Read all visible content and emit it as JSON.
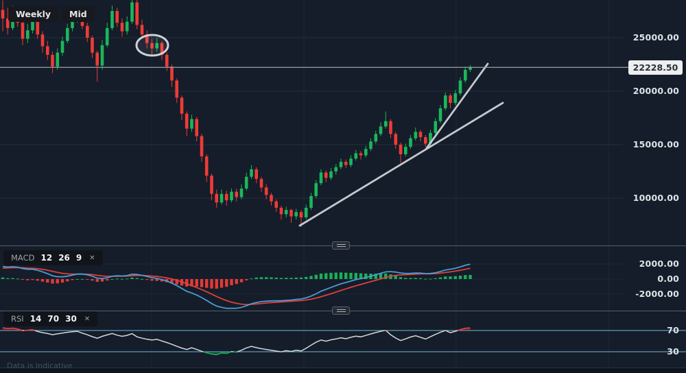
{
  "app": {
    "timeframe_button": "Weekly",
    "chart_type_button": "Mid",
    "disclaimer": "Data is indicative"
  },
  "price_axis": {
    "current_price": "22228.50",
    "labels": [
      {
        "text": "25000.00",
        "value": 25000
      },
      {
        "text": "20000.00",
        "value": 20000
      },
      {
        "text": "15000.00",
        "value": 15000
      },
      {
        "text": "10000.00",
        "value": 10000
      }
    ]
  },
  "macd_axis": {
    "labels": [
      {
        "text": "2000.00",
        "value": 2000
      },
      {
        "text": "0.00",
        "value": 0
      },
      {
        "text": "-2000.00",
        "value": -2000
      }
    ]
  },
  "rsi_axis": {
    "labels": [
      {
        "text": "70",
        "value": 70
      },
      {
        "text": "30",
        "value": 30
      }
    ]
  },
  "indicators": {
    "macd": {
      "name": "MACD",
      "params": [
        12,
        26,
        9
      ],
      "close_label": "✕"
    },
    "rsi": {
      "name": "RSI",
      "params": [
        14,
        70,
        30
      ],
      "close_label": "✕"
    }
  },
  "colors": {
    "background": "#141d29",
    "grid": "#1e2836",
    "grid_bright": "#243040",
    "up": "#1bb75b",
    "down": "#ef3b37",
    "macd_line": "#4a9bd5",
    "macd_signal": "#e0403a",
    "hist_up": "#1bb75b",
    "hist_down": "#ef3b37",
    "rsi_line": "#d5d8db",
    "rsi_level": "#6fb1d8",
    "overbought": "#e0393c",
    "oversold": "#1aa457",
    "annotation": "#ccd2d7",
    "price_line": "#98a1aa",
    "divider": "#8b97a6"
  },
  "chart_data": {
    "type": "candlestick",
    "timeframe": "Weekly",
    "last_price": 22228.5,
    "y_ticks": [
      25000,
      20000,
      15000,
      10000
    ],
    "visible_price_range": [
      6800,
      28500
    ],
    "macd_ticks": [
      2000,
      0,
      -2000
    ],
    "rsi_levels": [
      70,
      30
    ],
    "indicator_settings": {
      "macd": {
        "fast": 12,
        "slow": 26,
        "signal": 9
      },
      "rsi": {
        "period": 14,
        "overbought": 70,
        "oversold": 30
      }
    },
    "candles": [
      [
        27600,
        28500,
        25600,
        26800
      ],
      [
        26800,
        27800,
        25300,
        25900
      ],
      [
        25900,
        28000,
        25700,
        27400
      ],
      [
        27400,
        27900,
        26000,
        26400
      ],
      [
        26400,
        26700,
        24300,
        24900
      ],
      [
        24900,
        26300,
        24500,
        25700
      ],
      [
        25700,
        27600,
        25400,
        26900
      ],
      [
        26900,
        27100,
        24900,
        25300
      ],
      [
        25300,
        25600,
        23600,
        24200
      ],
      [
        24200,
        24700,
        22900,
        23400
      ],
      [
        23400,
        23700,
        21700,
        22300
      ],
      [
        22300,
        24000,
        22000,
        23600
      ],
      [
        23600,
        25100,
        23300,
        24700
      ],
      [
        24700,
        26300,
        24500,
        25900
      ],
      [
        25900,
        27400,
        25600,
        26900
      ],
      [
        26900,
        27900,
        26400,
        27400
      ],
      [
        27400,
        27600,
        25800,
        26100
      ],
      [
        26100,
        26400,
        24600,
        25000
      ],
      [
        25000,
        25200,
        23100,
        23600
      ],
      [
        23600,
        23800,
        20900,
        22400
      ],
      [
        22400,
        24800,
        22000,
        24300
      ],
      [
        24300,
        26400,
        24100,
        25900
      ],
      [
        25900,
        28000,
        25700,
        27500
      ],
      [
        27500,
        27800,
        26000,
        26400
      ],
      [
        26400,
        26800,
        25100,
        25600
      ],
      [
        25600,
        27000,
        25300,
        26500
      ],
      [
        26500,
        28600,
        26300,
        28300
      ],
      [
        28300,
        28600,
        25800,
        26200
      ],
      [
        26200,
        26700,
        24900,
        25300
      ],
      [
        25300,
        25700,
        24000,
        24500
      ],
      [
        24500,
        24900,
        23400,
        24000
      ],
      [
        24000,
        25000,
        23700,
        24500
      ],
      [
        24500,
        24700,
        22900,
        23400
      ],
      [
        23400,
        23600,
        21900,
        22300
      ],
      [
        22300,
        22500,
        20400,
        21000
      ],
      [
        21000,
        21200,
        18900,
        19400
      ],
      [
        19400,
        19600,
        17300,
        17900
      ],
      [
        17900,
        18100,
        15800,
        16500
      ],
      [
        16500,
        17800,
        16200,
        17400
      ],
      [
        17400,
        17600,
        15300,
        15800
      ],
      [
        15800,
        16000,
        13400,
        13900
      ],
      [
        13900,
        14100,
        11500,
        12100
      ],
      [
        12100,
        12300,
        9800,
        10400
      ],
      [
        10400,
        10800,
        9100,
        9600
      ],
      [
        9600,
        10800,
        9400,
        10400
      ],
      [
        10400,
        10700,
        9300,
        9800
      ],
      [
        9800,
        10900,
        9600,
        10600
      ],
      [
        10600,
        10900,
        9700,
        10100
      ],
      [
        10100,
        11300,
        9900,
        10900
      ],
      [
        10900,
        12400,
        10700,
        12000
      ],
      [
        12000,
        13100,
        11800,
        12700
      ],
      [
        12700,
        12900,
        11400,
        11800
      ],
      [
        11800,
        12000,
        10600,
        11000
      ],
      [
        11000,
        11300,
        9900,
        10300
      ],
      [
        10300,
        10500,
        9300,
        9700
      ],
      [
        9700,
        9900,
        8700,
        9100
      ],
      [
        9100,
        9300,
        8000,
        8500
      ],
      [
        8500,
        9200,
        8200,
        8900
      ],
      [
        8900,
        9000,
        7700,
        8300
      ],
      [
        8300,
        9000,
        8000,
        8700
      ],
      [
        8700,
        8900,
        7300,
        8200
      ],
      [
        8200,
        9400,
        8000,
        9100
      ],
      [
        9100,
        10500,
        8900,
        10200
      ],
      [
        10200,
        11700,
        10000,
        11400
      ],
      [
        11400,
        12700,
        11200,
        12400
      ],
      [
        12400,
        12600,
        11500,
        11900
      ],
      [
        11900,
        12800,
        11700,
        12500
      ],
      [
        12500,
        13200,
        12200,
        12900
      ],
      [
        12900,
        13700,
        12700,
        13400
      ],
      [
        13400,
        13600,
        12800,
        13100
      ],
      [
        13100,
        14000,
        12900,
        13700
      ],
      [
        13700,
        14500,
        13500,
        14200
      ],
      [
        14200,
        14400,
        13600,
        14000
      ],
      [
        14000,
        14900,
        13800,
        14600
      ],
      [
        14600,
        15600,
        14400,
        15300
      ],
      [
        15300,
        16300,
        15100,
        16000
      ],
      [
        16000,
        17100,
        15800,
        16700
      ],
      [
        16700,
        18100,
        16500,
        17200
      ],
      [
        17200,
        17400,
        15600,
        16000
      ],
      [
        16000,
        16200,
        14600,
        15000
      ],
      [
        15000,
        15200,
        13300,
        14100
      ],
      [
        14100,
        15100,
        13900,
        14800
      ],
      [
        14800,
        15900,
        14600,
        15600
      ],
      [
        15600,
        16600,
        15400,
        16200
      ],
      [
        16200,
        16400,
        15300,
        15700
      ],
      [
        15700,
        15900,
        14800,
        15100
      ],
      [
        15100,
        16400,
        14900,
        16100
      ],
      [
        16100,
        17500,
        15900,
        17200
      ],
      [
        17200,
        18700,
        17000,
        18400
      ],
      [
        18400,
        19900,
        18200,
        19600
      ],
      [
        19600,
        19800,
        18400,
        18900
      ],
      [
        18900,
        20100,
        18700,
        19800
      ],
      [
        19800,
        21300,
        19600,
        21000
      ],
      [
        21000,
        22300,
        20800,
        22000
      ],
      [
        22000,
        22450,
        21800,
        22228.5
      ]
    ],
    "annotations": {
      "ellipse": {
        "cx": 222,
        "cy": 66,
        "rx": 23,
        "ry": 15
      },
      "trendlines": [
        {
          "x1": 437,
          "y1": 329,
          "x2": 733,
          "y2": 150
        },
        {
          "x1": 622,
          "y1": 216,
          "x2": 711,
          "y2": 93
        }
      ]
    }
  }
}
